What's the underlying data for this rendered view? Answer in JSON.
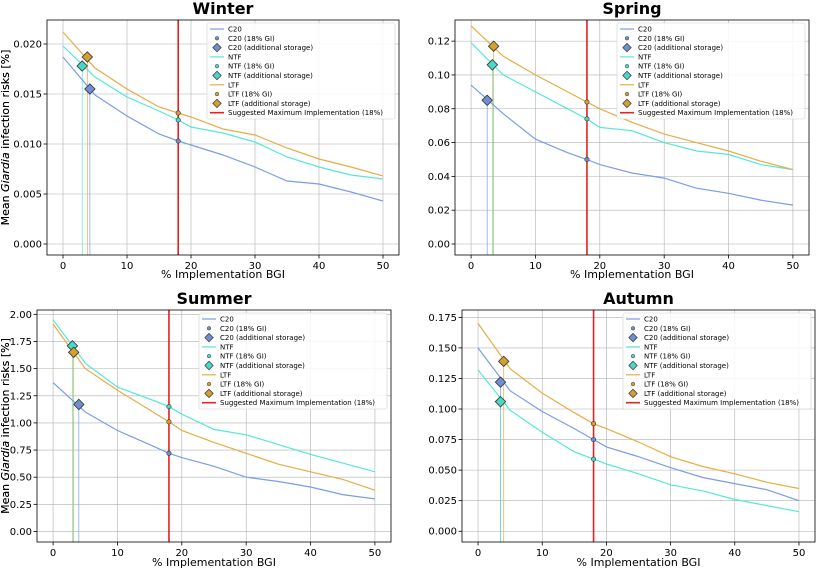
{
  "axis_labels": {
    "xlabel": "% Implementation BGI",
    "ylabel_pre": "Mean ",
    "ylabel_italic": "Giardia",
    "ylabel_post": " infection risks [%]"
  },
  "legend_labels": [
    "C20",
    "C20 (18% GI)",
    "C20 (additional storage)",
    "NTF",
    "NTF (18% GI)",
    "NTF (additional storage)",
    "LTF",
    "LTF (18% GI)",
    "LTF (additional storage)",
    "Suggested Maximum Implementation (18%)"
  ],
  "colors": {
    "C20": "#7a9ee6",
    "NTF": "#55e8d6",
    "LTF": "#e6ad45",
    "C20_marker": "#6f8fd4",
    "NTF_marker": "#48d8c8",
    "LTF_marker": "#d4a02e",
    "threshold": "#e82020"
  },
  "chart_data": [
    {
      "type": "line",
      "title": "Winter",
      "xlabel": "% Implementation BGI",
      "ylabel": "Mean Giardia infection risks [%]",
      "xlim": [
        -2.5,
        52.5
      ],
      "ylim": [
        -0.0011,
        0.0224
      ],
      "xticks": [
        0,
        10,
        20,
        30,
        40,
        50
      ],
      "xtick_labels": [
        "0",
        "10",
        "20",
        "30",
        "40",
        "50"
      ],
      "yticks": [
        0.0,
        0.005,
        0.01,
        0.015,
        0.02
      ],
      "ytick_labels": [
        "0.000",
        "0.005",
        "0.010",
        "0.015",
        "0.020"
      ],
      "x": [
        0,
        5,
        10,
        15,
        18,
        20,
        25,
        30,
        35,
        40,
        45,
        50
      ],
      "series": [
        {
          "name": "C20",
          "values": [
            0.0187,
            0.0149,
            0.0128,
            0.011,
            0.0103,
            0.0099,
            0.0089,
            0.0077,
            0.0063,
            0.006,
            0.0052,
            0.0043
          ]
        },
        {
          "name": "NTF",
          "values": [
            0.0198,
            0.0167,
            0.0147,
            0.0133,
            0.0124,
            0.0117,
            0.0111,
            0.0102,
            0.0087,
            0.0077,
            0.0069,
            0.0065
          ]
        },
        {
          "name": "LTF",
          "values": [
            0.0212,
            0.0176,
            0.0155,
            0.0137,
            0.0131,
            0.0127,
            0.0115,
            0.0109,
            0.0096,
            0.0085,
            0.0077,
            0.0068
          ]
        }
      ],
      "gi18": {
        "x": 18,
        "C20": 0.0103,
        "NTF": 0.0124,
        "LTF": 0.0131
      },
      "additional_storage": [
        {
          "name": "C20",
          "x": 4.2,
          "y": 0.0155
        },
        {
          "name": "NTF",
          "x": 3.0,
          "y": 0.0178
        },
        {
          "name": "LTF",
          "x": 3.8,
          "y": 0.0187
        }
      ],
      "threshold_x": 18,
      "legend_position": "top-right"
    },
    {
      "type": "line",
      "title": "Spring",
      "xlabel": "% Implementation BGI",
      "ylabel": "Mean Giardia infection risks [%]",
      "xlim": [
        -2.5,
        52.5
      ],
      "ylim": [
        -0.0065,
        0.1325
      ],
      "xticks": [
        0,
        10,
        20,
        30,
        40,
        50
      ],
      "xtick_labels": [
        "0",
        "10",
        "20",
        "30",
        "40",
        "50"
      ],
      "yticks": [
        0.0,
        0.02,
        0.04,
        0.06,
        0.08,
        0.1,
        0.12
      ],
      "ytick_labels": [
        "0.00",
        "0.02",
        "0.04",
        "0.06",
        "0.08",
        "0.10",
        "0.12"
      ],
      "x": [
        0,
        5,
        10,
        15,
        18,
        20,
        25,
        30,
        35,
        40,
        45,
        50
      ],
      "series": [
        {
          "name": "C20",
          "values": [
            0.094,
            0.077,
            0.062,
            0.054,
            0.05,
            0.047,
            0.042,
            0.039,
            0.033,
            0.03,
            0.026,
            0.023
          ]
        },
        {
          "name": "NTF",
          "values": [
            0.119,
            0.1,
            0.09,
            0.08,
            0.074,
            0.069,
            0.067,
            0.06,
            0.055,
            0.053,
            0.047,
            0.044
          ]
        },
        {
          "name": "LTF",
          "values": [
            0.129,
            0.111,
            0.1,
            0.09,
            0.084,
            0.08,
            0.072,
            0.065,
            0.06,
            0.055,
            0.049,
            0.044
          ]
        }
      ],
      "gi18": {
        "x": 18,
        "C20": 0.05,
        "NTF": 0.074,
        "LTF": 0.084
      },
      "additional_storage": [
        {
          "name": "C20",
          "x": 2.5,
          "y": 0.085
        },
        {
          "name": "NTF",
          "x": 3.3,
          "y": 0.106
        },
        {
          "name": "LTF",
          "x": 3.5,
          "y": 0.117
        }
      ],
      "threshold_x": 18,
      "legend_position": "top-right"
    },
    {
      "type": "line",
      "title": "Summer",
      "xlabel": "% Implementation BGI",
      "ylabel": "Mean Giardia infection risks [%]",
      "xlim": [
        -2.5,
        52.5
      ],
      "ylim": [
        -0.097,
        2.04
      ],
      "xticks": [
        0,
        10,
        20,
        30,
        40,
        50
      ],
      "xtick_labels": [
        "0",
        "10",
        "20",
        "30",
        "40",
        "50"
      ],
      "yticks": [
        0.0,
        0.25,
        0.5,
        0.75,
        1.0,
        1.25,
        1.5,
        1.75,
        2.0
      ],
      "ytick_labels": [
        "0.00",
        "0.25",
        "0.50",
        "0.75",
        "1.00",
        "1.25",
        "1.50",
        "1.75",
        "2.00"
      ],
      "x": [
        0,
        5,
        10,
        15,
        18,
        20,
        25,
        30,
        35,
        40,
        45,
        50
      ],
      "series": [
        {
          "name": "C20",
          "values": [
            1.37,
            1.1,
            0.93,
            0.8,
            0.72,
            0.68,
            0.6,
            0.5,
            0.46,
            0.41,
            0.34,
            0.3
          ]
        },
        {
          "name": "NTF",
          "values": [
            1.95,
            1.55,
            1.33,
            1.22,
            1.15,
            1.08,
            0.94,
            0.89,
            0.8,
            0.71,
            0.63,
            0.55
          ]
        },
        {
          "name": "LTF",
          "values": [
            1.91,
            1.5,
            1.3,
            1.12,
            1.01,
            0.93,
            0.82,
            0.72,
            0.62,
            0.55,
            0.48,
            0.38
          ]
        }
      ],
      "gi18": {
        "x": 18,
        "C20": 0.72,
        "NTF": 1.15,
        "LTF": 1.01
      },
      "additional_storage": [
        {
          "name": "C20",
          "x": 4.0,
          "y": 1.17
        },
        {
          "name": "NTF",
          "x": 3.0,
          "y": 1.71
        },
        {
          "name": "LTF",
          "x": 3.2,
          "y": 1.65
        }
      ],
      "threshold_x": 18,
      "legend_position": "top-right"
    },
    {
      "type": "line",
      "title": "Autumn",
      "xlabel": "% Implementation BGI",
      "ylabel": "Mean Giardia infection risks [%]",
      "xlim": [
        -2.5,
        52.5
      ],
      "ylim": [
        -0.0088,
        0.181
      ],
      "xticks": [
        0,
        10,
        20,
        30,
        40,
        50
      ],
      "xtick_labels": [
        "0",
        "10",
        "20",
        "30",
        "40",
        "50"
      ],
      "yticks": [
        0.0,
        0.025,
        0.05,
        0.075,
        0.1,
        0.125,
        0.15,
        0.175
      ],
      "ytick_labels": [
        "0.000",
        "0.025",
        "0.050",
        "0.075",
        "0.100",
        "0.125",
        "0.150",
        "0.175"
      ],
      "x": [
        0,
        5,
        10,
        15,
        18,
        20,
        25,
        30,
        35,
        40,
        45,
        50
      ],
      "series": [
        {
          "name": "C20",
          "values": [
            0.15,
            0.115,
            0.098,
            0.084,
            0.075,
            0.069,
            0.061,
            0.052,
            0.044,
            0.039,
            0.034,
            0.025
          ]
        },
        {
          "name": "NTF",
          "values": [
            0.132,
            0.099,
            0.081,
            0.065,
            0.059,
            0.055,
            0.047,
            0.038,
            0.033,
            0.026,
            0.021,
            0.016
          ]
        },
        {
          "name": "LTF",
          "values": [
            0.17,
            0.133,
            0.113,
            0.097,
            0.088,
            0.084,
            0.073,
            0.061,
            0.053,
            0.047,
            0.04,
            0.035
          ]
        }
      ],
      "gi18": {
        "x": 18,
        "C20": 0.075,
        "NTF": 0.059,
        "LTF": 0.088
      },
      "additional_storage": [
        {
          "name": "C20",
          "x": 3.5,
          "y": 0.122
        },
        {
          "name": "NTF",
          "x": 3.5,
          "y": 0.106
        },
        {
          "name": "LTF",
          "x": 4.0,
          "y": 0.139
        }
      ],
      "threshold_x": 18,
      "legend_position": "top-right"
    }
  ]
}
